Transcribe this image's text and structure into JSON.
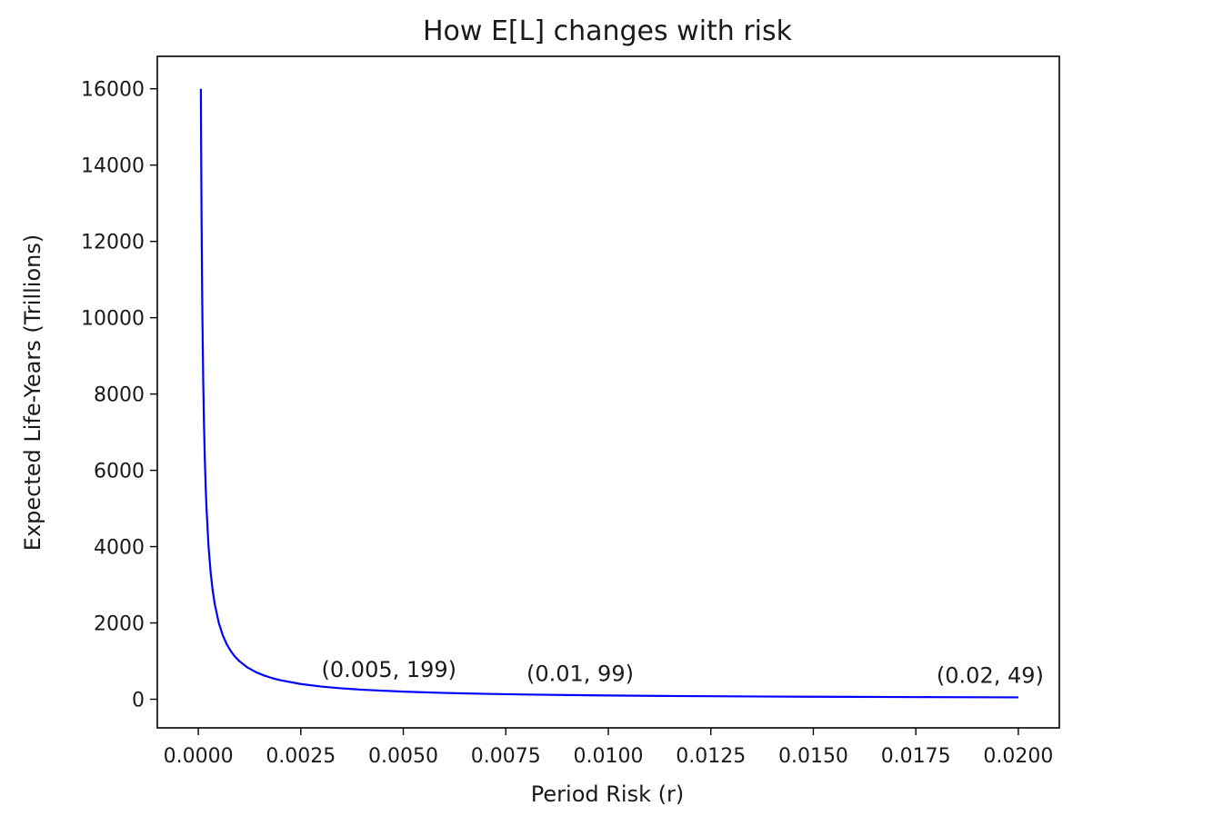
{
  "chart_data": {
    "type": "line",
    "title": "How E[L] changes with risk",
    "xlabel": "Period Risk (r)",
    "ylabel": "Expected Life-Years (Trillions)",
    "xlim": [
      -0.001,
      0.021
    ],
    "ylim": [
      -750,
      16850
    ],
    "xticks": [
      0.0,
      0.0025,
      0.005,
      0.0075,
      0.01,
      0.0125,
      0.015,
      0.0175,
      0.02
    ],
    "xtick_labels": [
      "0.0000",
      "0.0025",
      "0.0050",
      "0.0075",
      "0.0100",
      "0.0125",
      "0.0150",
      "0.0175",
      "0.0200"
    ],
    "yticks": [
      0,
      2000,
      4000,
      6000,
      8000,
      10000,
      12000,
      14000,
      16000
    ],
    "ytick_labels": [
      "0",
      "2000",
      "4000",
      "6000",
      "8000",
      "10000",
      "12000",
      "14000",
      "16000"
    ],
    "grid": false,
    "series": [
      {
        "color": "#0000ff",
        "x": [
          6.25e-05,
          7e-05,
          8e-05,
          9e-05,
          0.0001,
          0.00012,
          0.00014,
          0.00016,
          0.00018,
          0.0002,
          0.00025,
          0.0003,
          0.00035,
          0.0004,
          0.0005,
          0.0006,
          0.0007,
          0.0008,
          0.0009,
          0.001,
          0.0012,
          0.0014,
          0.0016,
          0.0018,
          0.002,
          0.0025,
          0.003,
          0.0035,
          0.004,
          0.005,
          0.006,
          0.007,
          0.008,
          0.009,
          0.01,
          0.011,
          0.012,
          0.013,
          0.014,
          0.015,
          0.016,
          0.017,
          0.018,
          0.019,
          0.02
        ],
        "y": [
          15999,
          14285,
          12499,
          11110,
          9999,
          8332,
          7142,
          6249,
          5555,
          4999,
          3999,
          3332,
          2856,
          2499,
          1999,
          1666,
          1428,
          1249,
          1110,
          999,
          832,
          713,
          624,
          554,
          499,
          399,
          332,
          285,
          249,
          199,
          166,
          142,
          124,
          110,
          99,
          90,
          82,
          76,
          70,
          66,
          62,
          58,
          55,
          52,
          49
        ]
      }
    ],
    "annotations": [
      {
        "text": "(0.005, 199)",
        "x": 0.005,
        "y": 199
      },
      {
        "text": "(0.01, 99)",
        "x": 0.01,
        "y": 99
      },
      {
        "text": "(0.02, 49)",
        "x": 0.02,
        "y": 49
      }
    ]
  }
}
